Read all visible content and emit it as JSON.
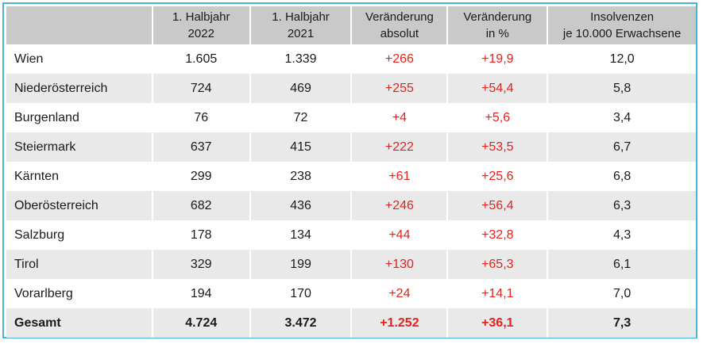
{
  "accent_colors": {
    "border": "#4ab3d8",
    "header_bg": "#c9c9c9",
    "negative_highlight": "#e8201a"
  },
  "table": {
    "headers": [
      "",
      "1. Halbjahr\n2022",
      "1. Halbjahr\n2021",
      "Veränderung\nabsolut",
      "Veränderung\nin %",
      "Insolvenzen\nje 10.000 Erwachsene"
    ],
    "rows": [
      {
        "region": "Wien",
        "h2022": "1.605",
        "h2021": "1.339",
        "abs": "+266",
        "pct": "+19,9",
        "per10k": "12,0"
      },
      {
        "region": "Niederösterreich",
        "h2022": "724",
        "h2021": "469",
        "abs": "+255",
        "pct": "+54,4",
        "per10k": "5,8"
      },
      {
        "region": "Burgenland",
        "h2022": "76",
        "h2021": "72",
        "abs": "+4",
        "pct": "+5,6",
        "per10k": "3,4"
      },
      {
        "region": "Steiermark",
        "h2022": "637",
        "h2021": "415",
        "abs": "+222",
        "pct": "+53,5",
        "per10k": "6,7"
      },
      {
        "region": "Kärnten",
        "h2022": "299",
        "h2021": "238",
        "abs": "+61",
        "pct": "+25,6",
        "per10k": "6,8"
      },
      {
        "region": "Oberösterreich",
        "h2022": "682",
        "h2021": "436",
        "abs": "+246",
        "pct": "+56,4",
        "per10k": "6,3"
      },
      {
        "region": "Salzburg",
        "h2022": "178",
        "h2021": "134",
        "abs": "+44",
        "pct": "+32,8",
        "per10k": "4,3"
      },
      {
        "region": "Tirol",
        "h2022": "329",
        "h2021": "199",
        "abs": "+130",
        "pct": "+65,3",
        "per10k": "6,1"
      },
      {
        "region": "Vorarlberg",
        "h2022": "194",
        "h2021": "170",
        "abs": "+24",
        "pct": "+14,1",
        "per10k": "7,0"
      }
    ],
    "total": {
      "region": "Gesamt",
      "h2022": "4.724",
      "h2021": "3.472",
      "abs": "+1.252",
      "pct": "+36,1",
      "per10k": "7,3"
    }
  }
}
